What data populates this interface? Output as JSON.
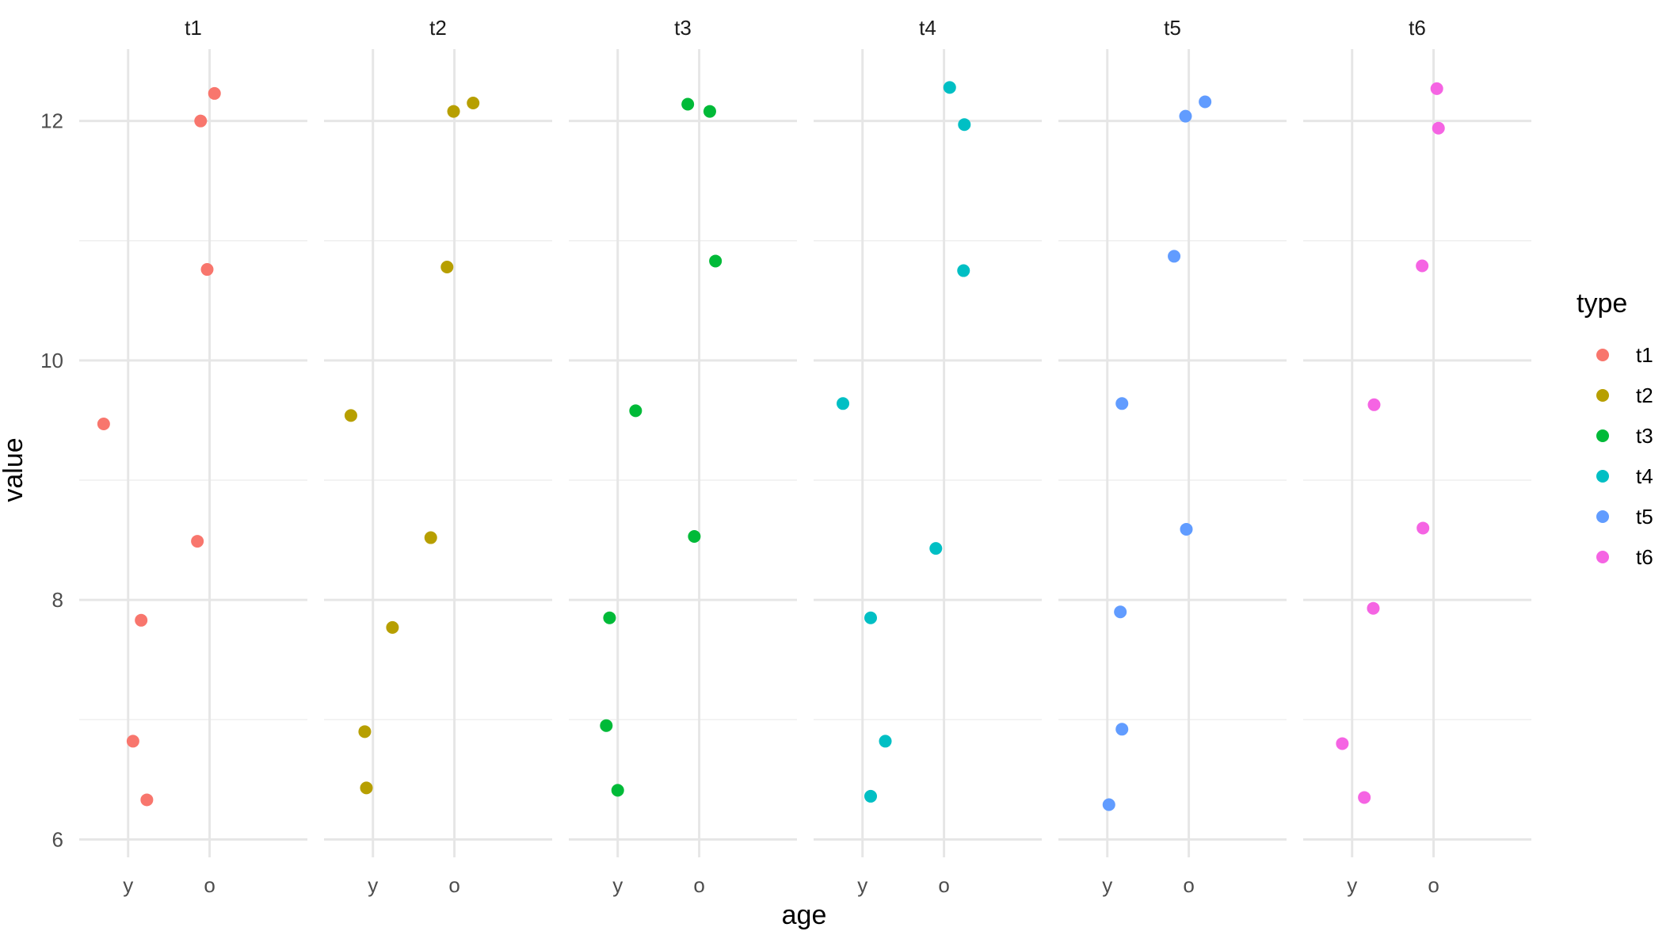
{
  "chart_data": {
    "type": "scatter",
    "facet_by": "type",
    "facets": [
      "t1",
      "t2",
      "t3",
      "t4",
      "t5",
      "t6"
    ],
    "x_categories": [
      "y",
      "o"
    ],
    "xlabel": "age",
    "ylabel": "value",
    "ylim": [
      5.85,
      12.6
    ],
    "y_ticks": [
      6,
      8,
      10,
      12
    ],
    "grid": true,
    "legend": {
      "title": "type",
      "position": "right",
      "entries": [
        {
          "label": "t1",
          "color": "#F8766D"
        },
        {
          "label": "t2",
          "color": "#B79F00"
        },
        {
          "label": "t3",
          "color": "#00BA38"
        },
        {
          "label": "t4",
          "color": "#00BFC4"
        },
        {
          "label": "t5",
          "color": "#619CFF"
        },
        {
          "label": "t6",
          "color": "#F564E3"
        }
      ]
    },
    "series": [
      {
        "facet": "t1",
        "color": "#F8766D",
        "points": [
          {
            "age": "y",
            "jitter": -0.3,
            "value": 9.47
          },
          {
            "age": "y",
            "jitter": 0.16,
            "value": 7.83
          },
          {
            "age": "y",
            "jitter": 0.06,
            "value": 6.82
          },
          {
            "age": "y",
            "jitter": 0.23,
            "value": 6.33
          },
          {
            "age": "o",
            "jitter": -0.11,
            "value": 12.0
          },
          {
            "age": "o",
            "jitter": 0.06,
            "value": 12.23
          },
          {
            "age": "o",
            "jitter": -0.03,
            "value": 10.76
          },
          {
            "age": "o",
            "jitter": -0.15,
            "value": 8.49
          }
        ]
      },
      {
        "facet": "t2",
        "color": "#B79F00",
        "points": [
          {
            "age": "y",
            "jitter": -0.27,
            "value": 9.54
          },
          {
            "age": "y",
            "jitter": 0.24,
            "value": 7.77
          },
          {
            "age": "y",
            "jitter": -0.1,
            "value": 6.9
          },
          {
            "age": "y",
            "jitter": -0.08,
            "value": 6.43
          },
          {
            "age": "o",
            "jitter": -0.01,
            "value": 12.08
          },
          {
            "age": "o",
            "jitter": 0.23,
            "value": 12.15
          },
          {
            "age": "o",
            "jitter": -0.09,
            "value": 10.78
          },
          {
            "age": "o",
            "jitter": -0.29,
            "value": 8.52
          }
        ]
      },
      {
        "facet": "t3",
        "color": "#00BA38",
        "points": [
          {
            "age": "y",
            "jitter": 0.22,
            "value": 9.58
          },
          {
            "age": "y",
            "jitter": -0.1,
            "value": 7.85
          },
          {
            "age": "y",
            "jitter": -0.14,
            "value": 6.95
          },
          {
            "age": "y",
            "jitter": 0.0,
            "value": 6.41
          },
          {
            "age": "o",
            "jitter": -0.14,
            "value": 12.14
          },
          {
            "age": "o",
            "jitter": 0.13,
            "value": 12.08
          },
          {
            "age": "o",
            "jitter": 0.2,
            "value": 10.83
          },
          {
            "age": "o",
            "jitter": -0.06,
            "value": 8.53
          }
        ]
      },
      {
        "facet": "t4",
        "color": "#00BFC4",
        "points": [
          {
            "age": "y",
            "jitter": -0.24,
            "value": 9.64
          },
          {
            "age": "y",
            "jitter": 0.1,
            "value": 7.85
          },
          {
            "age": "y",
            "jitter": 0.28,
            "value": 6.82
          },
          {
            "age": "y",
            "jitter": 0.1,
            "value": 6.36
          },
          {
            "age": "o",
            "jitter": 0.07,
            "value": 12.28
          },
          {
            "age": "o",
            "jitter": 0.25,
            "value": 11.97
          },
          {
            "age": "o",
            "jitter": 0.24,
            "value": 10.75
          },
          {
            "age": "o",
            "jitter": -0.1,
            "value": 8.43
          }
        ]
      },
      {
        "facet": "t5",
        "color": "#619CFF",
        "points": [
          {
            "age": "y",
            "jitter": 0.18,
            "value": 9.64
          },
          {
            "age": "y",
            "jitter": 0.16,
            "value": 7.9
          },
          {
            "age": "y",
            "jitter": 0.18,
            "value": 6.92
          },
          {
            "age": "y",
            "jitter": 0.02,
            "value": 6.29
          },
          {
            "age": "o",
            "jitter": -0.04,
            "value": 12.04
          },
          {
            "age": "o",
            "jitter": 0.2,
            "value": 12.16
          },
          {
            "age": "o",
            "jitter": -0.18,
            "value": 10.87
          },
          {
            "age": "o",
            "jitter": -0.03,
            "value": 8.59
          }
        ]
      },
      {
        "facet": "t6",
        "color": "#F564E3",
        "points": [
          {
            "age": "y",
            "jitter": 0.27,
            "value": 9.63
          },
          {
            "age": "y",
            "jitter": 0.26,
            "value": 7.93
          },
          {
            "age": "y",
            "jitter": -0.12,
            "value": 6.8
          },
          {
            "age": "y",
            "jitter": 0.15,
            "value": 6.35
          },
          {
            "age": "o",
            "jitter": 0.04,
            "value": 12.27
          },
          {
            "age": "o",
            "jitter": 0.06,
            "value": 11.94
          },
          {
            "age": "o",
            "jitter": -0.14,
            "value": 10.79
          },
          {
            "age": "o",
            "jitter": -0.13,
            "value": 8.6
          }
        ]
      }
    ]
  }
}
